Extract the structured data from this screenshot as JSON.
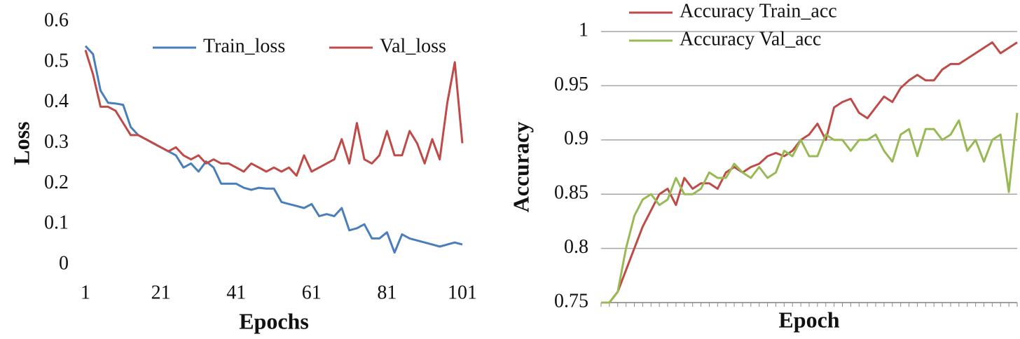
{
  "chart_data": [
    {
      "type": "line",
      "xlabel": "Epochs",
      "ylabel": "Loss",
      "x": [
        1,
        3,
        5,
        7,
        9,
        11,
        13,
        15,
        17,
        19,
        21,
        23,
        25,
        27,
        29,
        31,
        33,
        35,
        37,
        39,
        41,
        43,
        45,
        47,
        49,
        51,
        53,
        55,
        57,
        59,
        61,
        63,
        65,
        67,
        69,
        71,
        73,
        75,
        77,
        79,
        81,
        83,
        85,
        87,
        89,
        91,
        93,
        95,
        97,
        99,
        101
      ],
      "xlim": [
        1,
        101
      ],
      "xticks": [
        1,
        21,
        41,
        61,
        81,
        101
      ],
      "ylim": [
        0,
        0.6
      ],
      "yticks": [
        0,
        0.1,
        0.2,
        0.3,
        0.4,
        0.5,
        0.6
      ],
      "grid": false,
      "legend": "top",
      "series": [
        {
          "name": "Train_loss",
          "color": "#4a7ebb",
          "values": [
            0.54,
            0.52,
            0.43,
            0.4,
            0.398,
            0.395,
            0.34,
            0.32,
            0.31,
            0.3,
            0.29,
            0.28,
            0.27,
            0.24,
            0.25,
            0.23,
            0.255,
            0.24,
            0.2,
            0.2,
            0.2,
            0.19,
            0.185,
            0.19,
            0.188,
            0.188,
            0.155,
            0.15,
            0.145,
            0.14,
            0.15,
            0.12,
            0.125,
            0.12,
            0.14,
            0.085,
            0.09,
            0.1,
            0.065,
            0.065,
            0.08,
            0.03,
            0.075,
            0.065,
            0.06,
            0.055,
            0.05,
            0.045,
            0.05,
            0.055,
            0.05
          ]
        },
        {
          "name": "Val_loss",
          "color": "#be4b48",
          "values": [
            0.53,
            0.47,
            0.39,
            0.39,
            0.38,
            0.35,
            0.32,
            0.32,
            0.31,
            0.3,
            0.29,
            0.28,
            0.29,
            0.27,
            0.26,
            0.27,
            0.25,
            0.26,
            0.25,
            0.25,
            0.24,
            0.23,
            0.25,
            0.24,
            0.23,
            0.24,
            0.23,
            0.24,
            0.22,
            0.27,
            0.23,
            0.24,
            0.25,
            0.26,
            0.31,
            0.25,
            0.35,
            0.26,
            0.25,
            0.27,
            0.33,
            0.27,
            0.27,
            0.33,
            0.3,
            0.25,
            0.31,
            0.26,
            0.4,
            0.5,
            0.3
          ]
        }
      ]
    },
    {
      "type": "line",
      "xlabel": "Epoch",
      "ylabel": "Accuracy",
      "categories": [
        null,
        null,
        null,
        null,
        null,
        null,
        null,
        null,
        null,
        null,
        null,
        null,
        null,
        null,
        null,
        null,
        null,
        null,
        null,
        null,
        null,
        null,
        null,
        null,
        null,
        null,
        null,
        null,
        null,
        null,
        null,
        null,
        null,
        null,
        null,
        null,
        null,
        null,
        null,
        null,
        null,
        null,
        null,
        null,
        null,
        null,
        null,
        null,
        null,
        null,
        null
      ],
      "ylim": [
        0.75,
        1
      ],
      "yticks": [
        0.75,
        0.8,
        0.85,
        0.9,
        0.95,
        1
      ],
      "grid": true,
      "legend": "top-left",
      "series": [
        {
          "name": "Accuracy Train_acc",
          "color": "#be4b48",
          "values": [
            0.75,
            0.75,
            0.76,
            0.78,
            0.8,
            0.82,
            0.835,
            0.85,
            0.855,
            0.84,
            0.865,
            0.855,
            0.86,
            0.86,
            0.855,
            0.87,
            0.875,
            0.87,
            0.875,
            0.878,
            0.885,
            0.888,
            0.885,
            0.89,
            0.9,
            0.905,
            0.915,
            0.9,
            0.93,
            0.935,
            0.938,
            0.925,
            0.92,
            0.93,
            0.94,
            0.935,
            0.948,
            0.955,
            0.96,
            0.955,
            0.955,
            0.965,
            0.97,
            0.97,
            0.975,
            0.98,
            0.985,
            0.99,
            0.98,
            0.985,
            0.99
          ]
        },
        {
          "name": "Accuracy Val_acc",
          "color": "#98b954",
          "values": [
            0.75,
            0.75,
            0.76,
            0.8,
            0.83,
            0.845,
            0.85,
            0.84,
            0.845,
            0.865,
            0.85,
            0.85,
            0.855,
            0.87,
            0.865,
            0.865,
            0.878,
            0.87,
            0.865,
            0.875,
            0.865,
            0.87,
            0.89,
            0.885,
            0.9,
            0.885,
            0.885,
            0.905,
            0.9,
            0.9,
            0.89,
            0.9,
            0.9,
            0.905,
            0.89,
            0.88,
            0.905,
            0.91,
            0.885,
            0.91,
            0.91,
            0.9,
            0.905,
            0.918,
            0.89,
            0.9,
            0.88,
            0.9,
            0.905,
            0.852,
            0.925
          ]
        }
      ]
    }
  ]
}
